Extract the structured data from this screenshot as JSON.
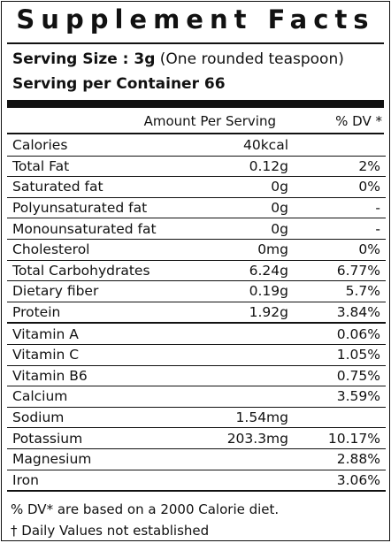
{
  "title": "Supplement Facts",
  "serving": {
    "size_label": "Serving Size : 3g",
    "size_note": "(One rounded teaspoon)",
    "per_container": "Serving per Container 66"
  },
  "header": {
    "amount": "Amount Per Serving",
    "dv": "% DV *"
  },
  "group1": [
    {
      "name": "Calories",
      "amount": "40kcal",
      "dv": ""
    },
    {
      "name": "Total Fat",
      "amount": "0.12g",
      "dv": "2%"
    },
    {
      "name": "Saturated fat",
      "amount": "0g",
      "dv": "0%"
    },
    {
      "name": "Polyunsaturated fat",
      "amount": "0g",
      "dv": "-"
    },
    {
      "name": "Monounsaturated fat",
      "amount": "0g",
      "dv": "-"
    },
    {
      "name": "Cholesterol",
      "amount": "0mg",
      "dv": "0%"
    },
    {
      "name": "Total Carbohydrates",
      "amount": "6.24g",
      "dv": "6.77%"
    },
    {
      "name": "Dietary fiber",
      "amount": "0.19g",
      "dv": "5.7%"
    },
    {
      "name": "Protein",
      "amount": "1.92g",
      "dv": "3.84%"
    }
  ],
  "group2": [
    {
      "name": "Vitamin  A",
      "amount": "",
      "dv": "0.06%"
    },
    {
      "name": "Vitamin C",
      "amount": "",
      "dv": "1.05%"
    },
    {
      "name": "Vitamin B6",
      "amount": "",
      "dv": "0.75%"
    },
    {
      "name": "Calcium",
      "amount": "",
      "dv": "3.59%"
    },
    {
      "name": "Sodium",
      "amount": "1.54mg",
      "dv": ""
    },
    {
      "name": "Potassium",
      "amount": "203.3mg",
      "dv": "10.17%"
    },
    {
      "name": "Magnesium",
      "amount": "",
      "dv": "2.88%"
    },
    {
      "name": "Iron",
      "amount": "",
      "dv": "3.06%"
    }
  ],
  "footnotes": {
    "dv_note": "% DV* are based on a 2000 Calorie diet.",
    "not_established": "† Daily Values not established"
  }
}
